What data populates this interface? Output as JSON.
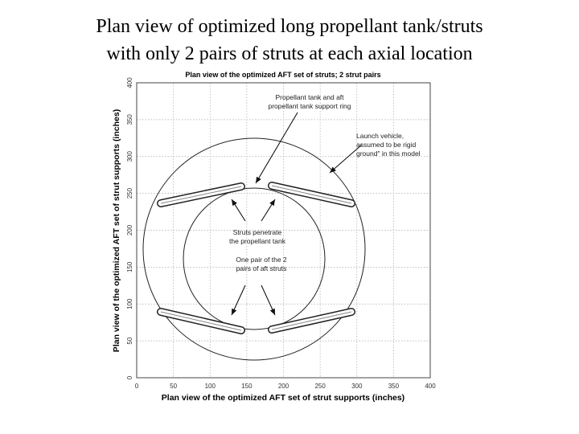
{
  "slide": {
    "title_lines": [
      "Plan view of optimized long propellant tank/struts",
      "with only 2 pairs of struts at each axial location"
    ]
  },
  "figure": {
    "title": "Plan view of the optimized AFT set of struts; 2 strut pairs",
    "x_label": "Plan view of the optimized AFT set of strut supports (inches)",
    "y_label": "Plan view of the optimized AFT set of strut supports (inches)",
    "xlim": [
      0,
      400
    ],
    "ylim": [
      0,
      400
    ],
    "xticks": [
      0,
      50,
      100,
      150,
      200,
      250,
      300,
      350,
      400
    ],
    "yticks": [
      0,
      50,
      100,
      150,
      200,
      250,
      300,
      350,
      400
    ],
    "annotations": {
      "ring": [
        "Propellant tank and aft",
        "propellant tank support ring"
      ],
      "vehicle": [
        "Launch vehicle,",
        "assumed to be rigid",
        "ground\" in this model"
      ],
      "penetrate": [
        "Struts penetrate",
        "the propellant tank"
      ],
      "pair": [
        "One pair of the 2",
        "pairs of aft struts"
      ]
    }
  }
}
